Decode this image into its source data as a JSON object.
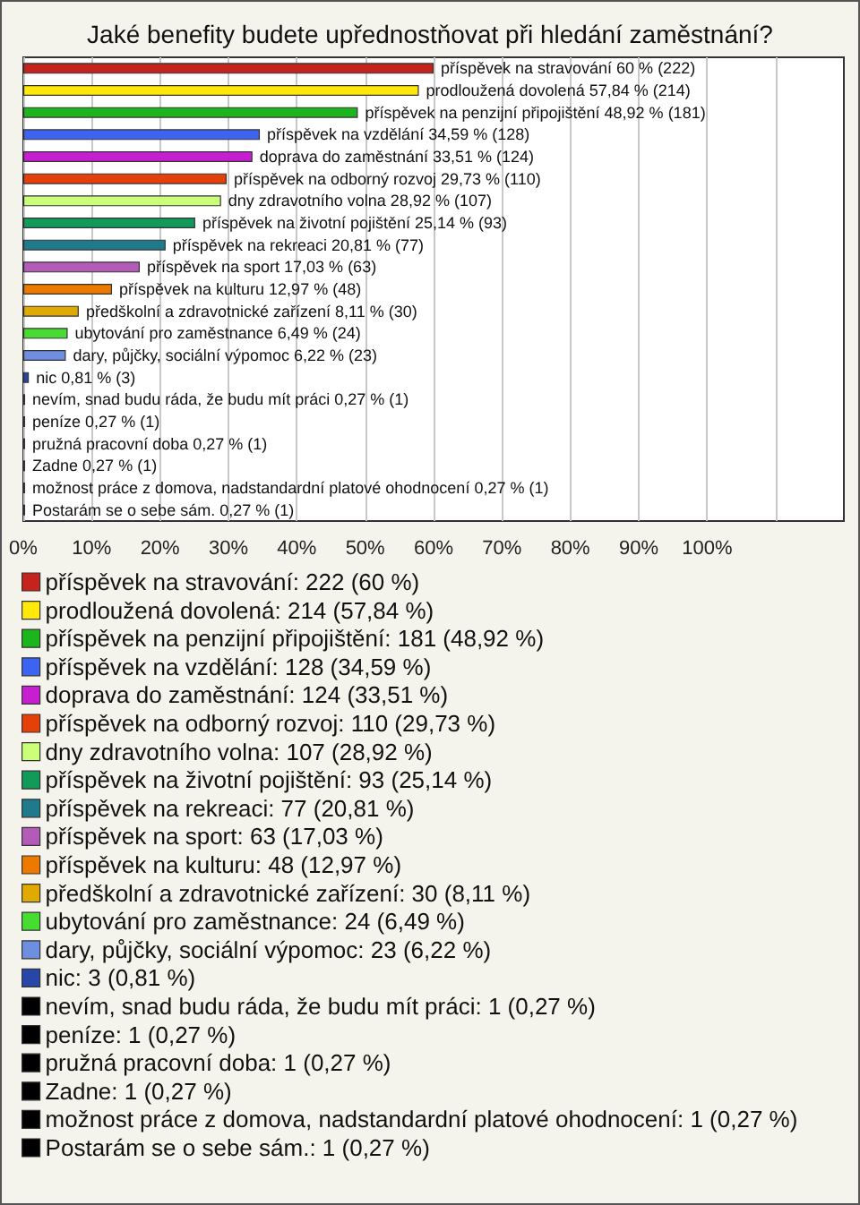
{
  "chart_data": {
    "type": "bar",
    "orientation": "horizontal",
    "title": "Jaké benefity budete upřednostňovat při hledání zaměstnání?",
    "categories": [
      null,
      null,
      null,
      null,
      null,
      null,
      null,
      null,
      null,
      null,
      null,
      null,
      null,
      null,
      null,
      null,
      null,
      null,
      null,
      null,
      null
    ],
    "xlim": [
      0,
      120
    ],
    "xticks": [
      {
        "value": 0,
        "label": "0%"
      },
      {
        "value": 10,
        "label": "10%"
      },
      {
        "value": 20,
        "label": "20%"
      },
      {
        "value": 30,
        "label": "30%"
      },
      {
        "value": 40,
        "label": "40%"
      },
      {
        "value": 50,
        "label": "50%"
      },
      {
        "value": 60,
        "label": "60%"
      },
      {
        "value": 70,
        "label": "70%"
      },
      {
        "value": 80,
        "label": "80%"
      },
      {
        "value": 90,
        "label": "90%"
      },
      {
        "value": 100,
        "label": "100%"
      },
      {
        "value": 110,
        "label": null
      }
    ],
    "grid": "x",
    "legend": "bottom",
    "tick_labels": "x",
    "series": [
      {
        "name": "příspěvek na stravování: 222 (60 %)",
        "color": "#c4241c",
        "values": [
          60,
          null,
          null,
          null,
          null,
          null,
          null,
          null,
          null,
          null,
          null,
          null,
          null,
          null,
          null,
          null,
          null,
          null,
          null,
          null,
          null
        ],
        "value_labels": [
          "příspěvek na stravování 60 % (222)",
          null,
          null,
          null,
          null,
          null,
          null,
          null,
          null,
          null,
          null,
          null,
          null,
          null,
          null,
          null,
          null,
          null,
          null,
          null,
          null
        ]
      },
      {
        "name": "prodloužená dovolená: 214 (57,84 %)",
        "color": "#ffe80a",
        "values": [
          null,
          57.84,
          null,
          null,
          null,
          null,
          null,
          null,
          null,
          null,
          null,
          null,
          null,
          null,
          null,
          null,
          null,
          null,
          null,
          null,
          null
        ],
        "value_labels": [
          null,
          "prodloužená dovolená 57,84 % (214)",
          null,
          null,
          null,
          null,
          null,
          null,
          null,
          null,
          null,
          null,
          null,
          null,
          null,
          null,
          null,
          null,
          null,
          null,
          null
        ]
      },
      {
        "name": "příspěvek na penzijní připojištění: 181 (48,92 %)",
        "color": "#1cb51c",
        "values": [
          null,
          null,
          48.92,
          null,
          null,
          null,
          null,
          null,
          null,
          null,
          null,
          null,
          null,
          null,
          null,
          null,
          null,
          null,
          null,
          null,
          null
        ],
        "value_labels": [
          null,
          null,
          "příspěvek na penzijní připojištění 48,92 % (181)",
          null,
          null,
          null,
          null,
          null,
          null,
          null,
          null,
          null,
          null,
          null,
          null,
          null,
          null,
          null,
          null,
          null,
          null
        ]
      },
      {
        "name": "příspěvek na vzdělání: 128 (34,59 %)",
        "color": "#3c64f0",
        "values": [
          null,
          null,
          null,
          34.59,
          null,
          null,
          null,
          null,
          null,
          null,
          null,
          null,
          null,
          null,
          null,
          null,
          null,
          null,
          null,
          null,
          null
        ],
        "value_labels": [
          null,
          null,
          null,
          "příspěvek na vzdělání 34,59 % (128)",
          null,
          null,
          null,
          null,
          null,
          null,
          null,
          null,
          null,
          null,
          null,
          null,
          null,
          null,
          null,
          null,
          null
        ]
      },
      {
        "name": "doprava do zaměstnání: 124 (33,51 %)",
        "color": "#c81ed2",
        "values": [
          null,
          null,
          null,
          null,
          33.51,
          null,
          null,
          null,
          null,
          null,
          null,
          null,
          null,
          null,
          null,
          null,
          null,
          null,
          null,
          null,
          null
        ],
        "value_labels": [
          null,
          null,
          null,
          null,
          "doprava do zaměstnání 33,51 % (124)",
          null,
          null,
          null,
          null,
          null,
          null,
          null,
          null,
          null,
          null,
          null,
          null,
          null,
          null,
          null,
          null
        ]
      },
      {
        "name": "příspěvek na odborný rozvoj: 110 (29,73 %)",
        "color": "#e6400a",
        "values": [
          null,
          null,
          null,
          null,
          null,
          29.73,
          null,
          null,
          null,
          null,
          null,
          null,
          null,
          null,
          null,
          null,
          null,
          null,
          null,
          null,
          null
        ],
        "value_labels": [
          null,
          null,
          null,
          null,
          null,
          "příspěvek na odborný rozvoj 29,73 % (110)",
          null,
          null,
          null,
          null,
          null,
          null,
          null,
          null,
          null,
          null,
          null,
          null,
          null,
          null,
          null
        ]
      },
      {
        "name": "dny zdravotního volna: 107 (28,92 %)",
        "color": "#ccff78",
        "values": [
          null,
          null,
          null,
          null,
          null,
          null,
          28.92,
          null,
          null,
          null,
          null,
          null,
          null,
          null,
          null,
          null,
          null,
          null,
          null,
          null,
          null
        ],
        "value_labels": [
          null,
          null,
          null,
          null,
          null,
          null,
          "dny zdravotního volna 28,92 % (107)",
          null,
          null,
          null,
          null,
          null,
          null,
          null,
          null,
          null,
          null,
          null,
          null,
          null,
          null
        ]
      },
      {
        "name": "příspěvek na životní pojištění: 93 (25,14 %)",
        "color": "#129a5a",
        "values": [
          null,
          null,
          null,
          null,
          null,
          null,
          null,
          25.14,
          null,
          null,
          null,
          null,
          null,
          null,
          null,
          null,
          null,
          null,
          null,
          null,
          null
        ],
        "value_labels": [
          null,
          null,
          null,
          null,
          null,
          null,
          null,
          "příspěvek na životní pojištění 25,14 % (93)",
          null,
          null,
          null,
          null,
          null,
          null,
          null,
          null,
          null,
          null,
          null,
          null,
          null
        ]
      },
      {
        "name": "příspěvek na rekreaci: 77 (20,81 %)",
        "color": "#1f7a8c",
        "values": [
          null,
          null,
          null,
          null,
          null,
          null,
          null,
          null,
          20.81,
          null,
          null,
          null,
          null,
          null,
          null,
          null,
          null,
          null,
          null,
          null,
          null
        ],
        "value_labels": [
          null,
          null,
          null,
          null,
          null,
          null,
          null,
          null,
          "příspěvek na rekreaci 20,81 % (77)",
          null,
          null,
          null,
          null,
          null,
          null,
          null,
          null,
          null,
          null,
          null,
          null
        ]
      },
      {
        "name": "příspěvek na sport: 63 (17,03 %)",
        "color": "#b45ab9",
        "values": [
          null,
          null,
          null,
          null,
          null,
          null,
          null,
          null,
          null,
          17.03,
          null,
          null,
          null,
          null,
          null,
          null,
          null,
          null,
          null,
          null,
          null
        ],
        "value_labels": [
          null,
          null,
          null,
          null,
          null,
          null,
          null,
          null,
          null,
          "příspěvek na sport 17,03 % (63)",
          null,
          null,
          null,
          null,
          null,
          null,
          null,
          null,
          null,
          null,
          null
        ]
      },
      {
        "name": "příspěvek na kulturu: 48 (12,97 %)",
        "color": "#ec7a00",
        "values": [
          null,
          null,
          null,
          null,
          null,
          null,
          null,
          null,
          null,
          null,
          12.97,
          null,
          null,
          null,
          null,
          null,
          null,
          null,
          null,
          null,
          null
        ],
        "value_labels": [
          null,
          null,
          null,
          null,
          null,
          null,
          null,
          null,
          null,
          null,
          "příspěvek na kulturu 12,97 % (48)",
          null,
          null,
          null,
          null,
          null,
          null,
          null,
          null,
          null,
          null
        ]
      },
      {
        "name": "předškolní a zdravotnické zařízení: 30 (8,11 %)",
        "color": "#e0aa00",
        "values": [
          null,
          null,
          null,
          null,
          null,
          null,
          null,
          null,
          null,
          null,
          null,
          8.11,
          null,
          null,
          null,
          null,
          null,
          null,
          null,
          null,
          null
        ],
        "value_labels": [
          null,
          null,
          null,
          null,
          null,
          null,
          null,
          null,
          null,
          null,
          null,
          "předškolní a zdravotnické zařízení 8,11 % (30)",
          null,
          null,
          null,
          null,
          null,
          null,
          null,
          null,
          null
        ]
      },
      {
        "name": "ubytování pro zaměstnance: 24 (6,49 %)",
        "color": "#46dc32",
        "values": [
          null,
          null,
          null,
          null,
          null,
          null,
          null,
          null,
          null,
          null,
          null,
          null,
          6.49,
          null,
          null,
          null,
          null,
          null,
          null,
          null,
          null
        ],
        "value_labels": [
          null,
          null,
          null,
          null,
          null,
          null,
          null,
          null,
          null,
          null,
          null,
          null,
          "ubytování pro zaměstnance 6,49 % (24)",
          null,
          null,
          null,
          null,
          null,
          null,
          null,
          null
        ]
      },
      {
        "name": "dary, půjčky, sociální výpomoc: 23 (6,22 %)",
        "color": "#6e8fe0",
        "values": [
          null,
          null,
          null,
          null,
          null,
          null,
          null,
          null,
          null,
          null,
          null,
          null,
          null,
          6.22,
          null,
          null,
          null,
          null,
          null,
          null,
          null
        ],
        "value_labels": [
          null,
          null,
          null,
          null,
          null,
          null,
          null,
          null,
          null,
          null,
          null,
          null,
          null,
          "dary, půjčky, sociální výpomoc 6,22 % (23)",
          null,
          null,
          null,
          null,
          null,
          null,
          null
        ]
      },
      {
        "name": "nic: 3 (0,81 %)",
        "color": "#2846a8",
        "values": [
          null,
          null,
          null,
          null,
          null,
          null,
          null,
          null,
          null,
          null,
          null,
          null,
          null,
          null,
          0.81,
          null,
          null,
          null,
          null,
          null,
          null
        ],
        "value_labels": [
          null,
          null,
          null,
          null,
          null,
          null,
          null,
          null,
          null,
          null,
          null,
          null,
          null,
          null,
          "nic 0,81 % (3)",
          null,
          null,
          null,
          null,
          null,
          null
        ]
      },
      {
        "name": "nevím, snad budu ráda, že budu mít práci: 1 (0,27 %)",
        "color": "#000000",
        "values": [
          null,
          null,
          null,
          null,
          null,
          null,
          null,
          null,
          null,
          null,
          null,
          null,
          null,
          null,
          null,
          0.27,
          null,
          null,
          null,
          null,
          null
        ],
        "value_labels": [
          null,
          null,
          null,
          null,
          null,
          null,
          null,
          null,
          null,
          null,
          null,
          null,
          null,
          null,
          null,
          "nevím, snad budu ráda, že budu mít práci 0,27 % (1)",
          null,
          null,
          null,
          null,
          null
        ]
      },
      {
        "name": "peníze: 1 (0,27 %)",
        "color": "#000000",
        "values": [
          null,
          null,
          null,
          null,
          null,
          null,
          null,
          null,
          null,
          null,
          null,
          null,
          null,
          null,
          null,
          null,
          0.27,
          null,
          null,
          null,
          null
        ],
        "value_labels": [
          null,
          null,
          null,
          null,
          null,
          null,
          null,
          null,
          null,
          null,
          null,
          null,
          null,
          null,
          null,
          null,
          "peníze 0,27 % (1)",
          null,
          null,
          null,
          null
        ]
      },
      {
        "name": "pružná pracovní doba: 1 (0,27 %)",
        "color": "#000000",
        "values": [
          null,
          null,
          null,
          null,
          null,
          null,
          null,
          null,
          null,
          null,
          null,
          null,
          null,
          null,
          null,
          null,
          null,
          0.27,
          null,
          null,
          null
        ],
        "value_labels": [
          null,
          null,
          null,
          null,
          null,
          null,
          null,
          null,
          null,
          null,
          null,
          null,
          null,
          null,
          null,
          null,
          null,
          "pružná pracovní doba 0,27 % (1)",
          null,
          null,
          null
        ]
      },
      {
        "name": "Zadne: 1 (0,27 %)",
        "color": "#000000",
        "values": [
          null,
          null,
          null,
          null,
          null,
          null,
          null,
          null,
          null,
          null,
          null,
          null,
          null,
          null,
          null,
          null,
          null,
          null,
          0.27,
          null,
          null
        ],
        "value_labels": [
          null,
          null,
          null,
          null,
          null,
          null,
          null,
          null,
          null,
          null,
          null,
          null,
          null,
          null,
          null,
          null,
          null,
          null,
          "Zadne 0,27 % (1)",
          null,
          null
        ]
      },
      {
        "name": "možnost práce z domova, nadstandardní platové ohodnocení: 1 (0,27 %)",
        "color": "#000000",
        "values": [
          null,
          null,
          null,
          null,
          null,
          null,
          null,
          null,
          null,
          null,
          null,
          null,
          null,
          null,
          null,
          null,
          null,
          null,
          null,
          0.27,
          null
        ],
        "value_labels": [
          null,
          null,
          null,
          null,
          null,
          null,
          null,
          null,
          null,
          null,
          null,
          null,
          null,
          null,
          null,
          null,
          null,
          null,
          null,
          "možnost práce z domova, nadstandardní platové ohodnocení 0,27 % (1)",
          null
        ]
      },
      {
        "name": "Postarám se o sebe sám.: 1 (0,27 %)",
        "color": "#000000",
        "values": [
          null,
          null,
          null,
          null,
          null,
          null,
          null,
          null,
          null,
          null,
          null,
          null,
          null,
          null,
          null,
          null,
          null,
          null,
          null,
          null,
          0.27
        ],
        "value_labels": [
          null,
          null,
          null,
          null,
          null,
          null,
          null,
          null,
          null,
          null,
          null,
          null,
          null,
          null,
          null,
          null,
          null,
          null,
          null,
          null,
          "Postarám se o sebe sám. 0,27 % (1)"
        ]
      }
    ]
  }
}
